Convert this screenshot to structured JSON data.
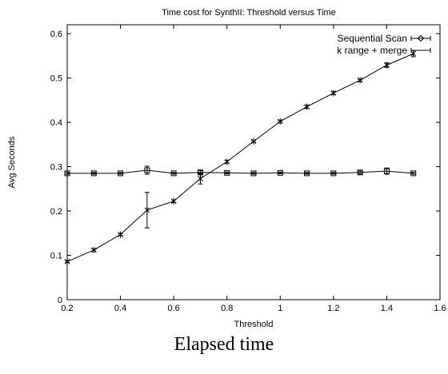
{
  "caption": "Elapsed time",
  "chart_data": {
    "type": "line",
    "title": "Time cost for SynthII:  Threshold versus Time",
    "xlabel": "Threshold",
    "ylabel": "Avg Seconds",
    "xlim": [
      0.2,
      1.6
    ],
    "ylim": [
      0,
      0.62
    ],
    "xticks": [
      0.2,
      0.4,
      0.6,
      0.8,
      1,
      1.2,
      1.4,
      1.6
    ],
    "xtick_labels": [
      "0.2",
      "0.4",
      "0.6",
      "0.8",
      "1",
      "1.2",
      "1.4",
      "1.6"
    ],
    "yticks": [
      0,
      0.1,
      0.2,
      0.3,
      0.4,
      0.5,
      0.6
    ],
    "ytick_labels": [
      "0",
      "0.1",
      "0.2",
      "0.3",
      "0.4",
      "0.5",
      "0.6"
    ],
    "grid": false,
    "legend_position": "top-right",
    "x": [
      0.2,
      0.3,
      0.4,
      0.5,
      0.6,
      0.7,
      0.8,
      0.9,
      1.0,
      1.1,
      1.2,
      1.3,
      1.4,
      1.5
    ],
    "series": [
      {
        "name": "Sequential Scan",
        "marker": "square",
        "values": [
          0.285,
          0.285,
          0.285,
          0.292,
          0.285,
          0.287,
          0.286,
          0.285,
          0.286,
          0.285,
          0.285,
          0.287,
          0.29,
          0.285
        ],
        "errors": [
          0.002,
          0.002,
          0.002,
          0.009,
          0.002,
          0.004,
          0.002,
          0.002,
          0.002,
          0.002,
          0.002,
          0.003,
          0.007,
          0.002
        ]
      },
      {
        "name": "k range + merge",
        "marker": "star",
        "values": [
          0.086,
          0.112,
          0.147,
          0.202,
          0.222,
          0.273,
          0.311,
          0.357,
          0.402,
          0.435,
          0.466,
          0.495,
          0.529,
          0.555
        ],
        "errors": [
          0.002,
          0.002,
          0.002,
          0.04,
          0.003,
          0.012,
          0.003,
          0.002,
          0.002,
          0.003,
          0.003,
          0.002,
          0.005,
          0.007
        ]
      }
    ]
  }
}
